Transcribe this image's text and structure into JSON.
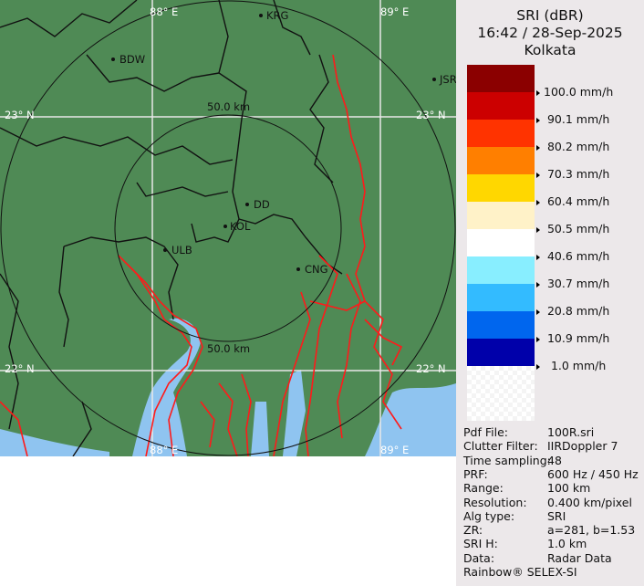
{
  "product": {
    "name": "SRI (dBR)",
    "datetime": "16:42 / 28-Sep-2025",
    "site": "Kolkata"
  },
  "legend": [
    {
      "label": "100.0 mm/h",
      "color": "#8b0000"
    },
    {
      "label": " 90.1 mm/h",
      "color": "#cc0000"
    },
    {
      "label": " 80.2 mm/h",
      "color": "#ff3300"
    },
    {
      "label": " 70.3 mm/h",
      "color": "#ff7f00"
    },
    {
      "label": " 60.4 mm/h",
      "color": "#ffd700"
    },
    {
      "label": " 50.5 mm/h",
      "color": "#fff2c8"
    },
    {
      "label": " 40.6 mm/h",
      "color": "#ffffff"
    },
    {
      "label": " 30.7 mm/h",
      "color": "#88eeff"
    },
    {
      "label": " 20.8 mm/h",
      "color": "#33bbff"
    },
    {
      "label": " 10.9 mm/h",
      "color": "#0066ee"
    },
    {
      "label": "  1.0 mm/h",
      "color": "#0000aa"
    }
  ],
  "info": [
    {
      "key": "Pdf File:",
      "value": "100R.sri"
    },
    {
      "key": "Clutter Filter:",
      "value": "IIRDoppler 7"
    },
    {
      "key": "Time sampling:",
      "value": "48"
    },
    {
      "key": "PRF:",
      "value": "600 Hz / 450 Hz"
    },
    {
      "key": "Range:",
      "value": "100 km"
    },
    {
      "key": "Resolution:",
      "value": "0.400 km/pixel"
    },
    {
      "key": "Alg type:",
      "value": "SRI"
    },
    {
      "key": "ZR:",
      "value": "a=281, b=1.53"
    },
    {
      "key": "SRI H:",
      "value": "1.0 km"
    },
    {
      "key": "Data:",
      "value": "Radar Data"
    }
  ],
  "footer": "Rainbow® SELEX-SI",
  "map": {
    "grid_labels": {
      "lon_88": "88° E",
      "lon_89": "89° E",
      "lat_23": "23° N",
      "lat_22": "22° N"
    },
    "range_rings": {
      "inner": "50.0 km"
    },
    "places": [
      {
        "name": "KRG"
      },
      {
        "name": "BDW"
      },
      {
        "name": "JSR"
      },
      {
        "name": "DD"
      },
      {
        "name": "KOL"
      },
      {
        "name": "ULB"
      },
      {
        "name": "CNG"
      }
    ],
    "colors": {
      "land": "#4f8a55",
      "water": "#8fc4f0",
      "rivers": "#ff1a1a",
      "borders": "#111111"
    }
  }
}
